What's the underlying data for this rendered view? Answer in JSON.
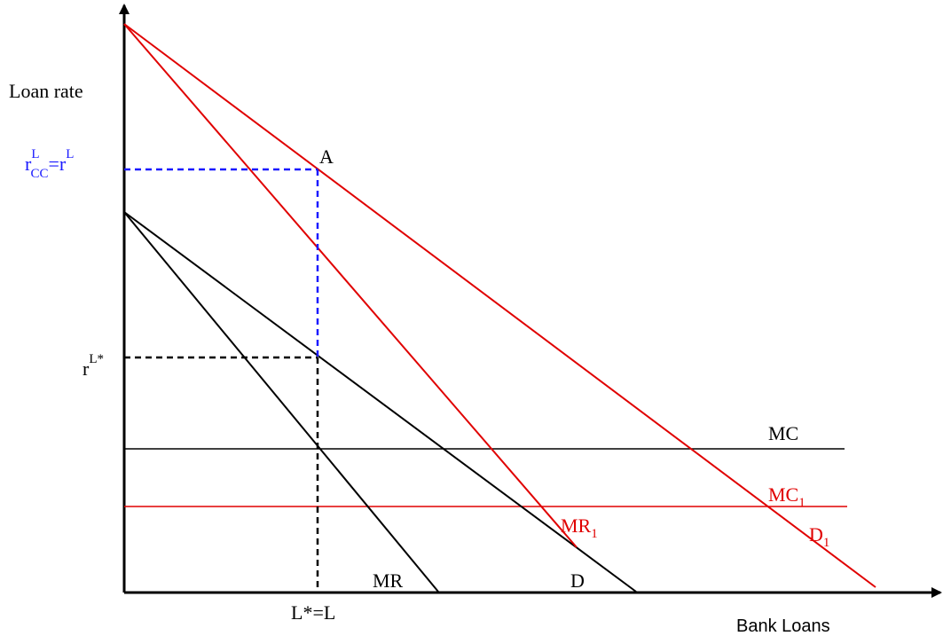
{
  "axes": {
    "y_label": "Loan rate",
    "x_label": "Bank Loans"
  },
  "levels": {
    "r_cc": {
      "base": "r",
      "sup": "L",
      "sub": "CC",
      "eq_base": "=r",
      "eq_sup": "L",
      "color": "#1a1aff"
    },
    "r_star": {
      "base": "r",
      "sup": "L*"
    },
    "l_star": "L*=L"
  },
  "points": {
    "a": "A"
  },
  "curves": {
    "mc": {
      "label": "MC",
      "color": "#000000"
    },
    "mc1": {
      "label_base": "MC",
      "label_sub": "1",
      "color": "#e00000"
    },
    "mr": {
      "label": "MR",
      "color": "#000000"
    },
    "d": {
      "label": "D",
      "color": "#000000"
    },
    "mr1": {
      "label_base": "MR",
      "label_sub": "1",
      "color": "#e00000"
    },
    "d1": {
      "label_base": "D",
      "label_sub": "1",
      "color": "#e00000"
    }
  }
}
